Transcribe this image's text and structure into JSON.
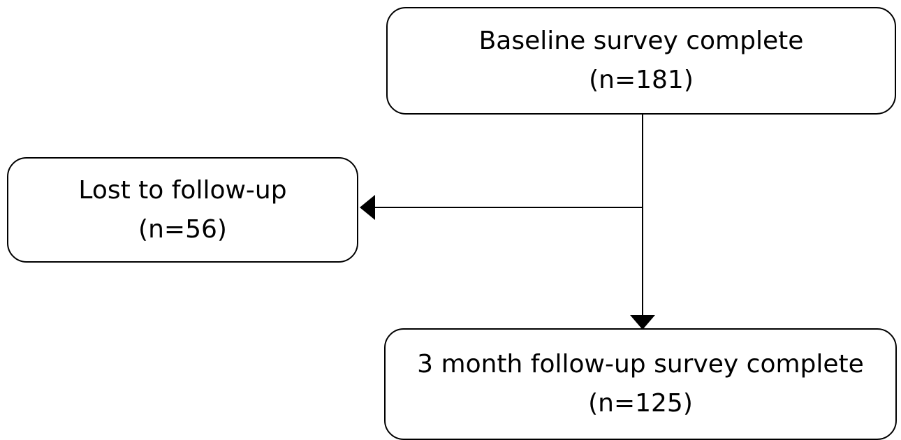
{
  "nodes": {
    "baseline": {
      "title": "Baseline survey complete",
      "count": "(n=181)"
    },
    "lost": {
      "title": "Lost to follow-up",
      "count": "(n=56)"
    },
    "followup": {
      "title": "3 month follow-up survey complete",
      "count": "(n=125)"
    }
  },
  "edges": [
    {
      "from": "baseline",
      "to": "lost"
    },
    {
      "from": "baseline",
      "to": "followup"
    }
  ],
  "colors": {
    "line": "#000000",
    "background": "#ffffff"
  }
}
